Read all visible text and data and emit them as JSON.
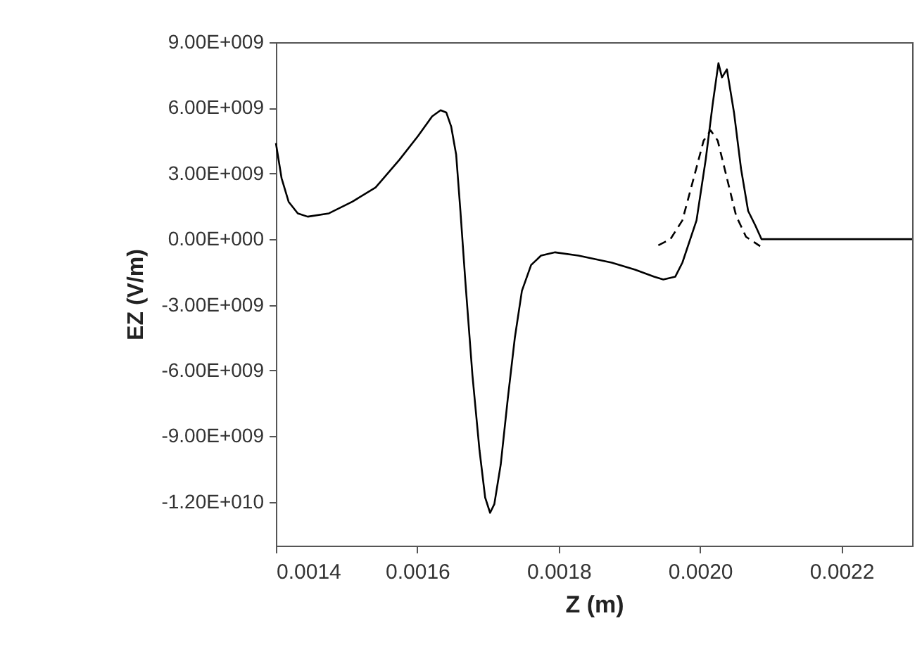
{
  "chart_data": {
    "type": "line",
    "xlabel": "Z (m)",
    "ylabel": "EZ (V/m)",
    "xlim": [
      0.0014,
      0.0023
    ],
    "xticks": [
      {
        "value": 0.0014,
        "label": "0.0014"
      },
      {
        "value": 0.0016,
        "label": "0.0016"
      },
      {
        "value": 0.0018,
        "label": "0.0018"
      },
      {
        "value": 0.002,
        "label": "0.0020"
      },
      {
        "value": 0.0022,
        "label": "0.0022"
      }
    ],
    "ylim": [
      -14000000000,
      9000000000
    ],
    "yticks": [
      {
        "value": 9000000000,
        "label": "9.00E+009"
      },
      {
        "value": 6000000000,
        "label": "6.00E+009"
      },
      {
        "value": 3000000000,
        "label": "3.00E+009"
      },
      {
        "value": 0,
        "label": "0.00E+000"
      },
      {
        "value": -3000000000,
        "label": "-3.00E+009"
      },
      {
        "value": -6000000000,
        "label": "-6.00E+009"
      },
      {
        "value": -9000000000,
        "label": "-9.00E+009"
      },
      {
        "value": -12000000000,
        "label": "-1.20E+010"
      }
    ],
    "grid": false,
    "marker": "none",
    "series": [
      {
        "color": "#000000",
        "line_style": "solid",
        "x": [
          0.0014,
          0.001408,
          0.001418,
          0.001431,
          0.001445,
          0.001475,
          0.001508,
          0.001541,
          0.001575,
          0.001601,
          0.001621,
          0.001633,
          0.001641,
          0.001648,
          0.001655,
          0.001661,
          0.001668,
          0.001678,
          0.001688,
          0.001696,
          0.001703,
          0.001709,
          0.001718,
          0.001728,
          0.001738,
          0.001748,
          0.001761,
          0.001775,
          0.001795,
          0.001828,
          0.001875,
          0.001908,
          0.001935,
          0.001948,
          0.001965,
          0.001975,
          0.001995,
          0.002008,
          0.002018,
          0.002026,
          0.002031,
          0.002038,
          0.002048,
          0.002058,
          0.002068,
          0.002078,
          0.002087,
          0.002108,
          0.0023
        ],
        "values": [
          4390000000.0,
          2790000000.0,
          1710000000.0,
          1180000000.0,
          1030000000.0,
          1180000000.0,
          1710000000.0,
          2360000000.0,
          3640000000.0,
          4710000000.0,
          5610000000.0,
          5890000000.0,
          5790000000.0,
          5140000000.0,
          3860000000.0,
          1290000000.0,
          -1930000000.0,
          -6210000000.0,
          -9640000000.0,
          -11800000000.0,
          -12500000000.0,
          -12100000000.0,
          -10300000000.0,
          -7290000000.0,
          -4500000000.0,
          -2360000000.0,
          -1180000000.0,
          -750000000.0,
          -600000000.0,
          -750000000.0,
          -1070000000.0,
          -1390000000.0,
          -1710000000.0,
          -1840000000.0,
          -1710000000.0,
          -1070000000.0,
          860000000.0,
          3640000000.0,
          6210000000.0,
          8040000000.0,
          7390000000.0,
          7760000000.0,
          5790000000.0,
          3210000000.0,
          1290000000.0,
          640000000.0,
          0,
          0,
          0
        ]
      },
      {
        "color": "#000000",
        "line_style": "dashed",
        "x": [
          0.001941,
          0.001958,
          0.001975,
          0.001991,
          0.002005,
          0.002015,
          0.002025,
          0.002038,
          0.002051,
          0.002065,
          0.002085
        ],
        "values": [
          -280000000.0,
          0,
          860000000.0,
          2790000000.0,
          4500000000.0,
          4970000000.0,
          4500000000.0,
          2790000000.0,
          1070000000.0,
          110000000.0,
          -320000000.0
        ]
      }
    ]
  }
}
